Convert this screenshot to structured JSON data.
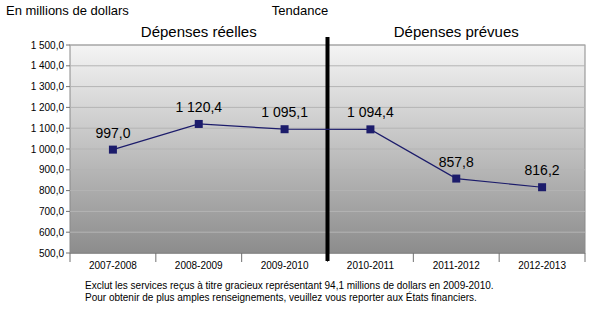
{
  "chart_data": {
    "type": "line",
    "title": "Tendance",
    "y_label": "En millions de dollars",
    "annotations": [
      "Dépenses réelles",
      "Dépenses prévues"
    ],
    "footnote": [
      "Exclut les services reçus à titre gracieux représentant 94,1 millions de dollars en 2009-2010.",
      "Pour obtenir de plus amples renseignements, veuillez vous reporter aux États financiers."
    ],
    "categories": [
      "2007-2008",
      "2008-2009",
      "2009-2010",
      "2010-2011",
      "2011-2012",
      "2012-2013"
    ],
    "values": [
      997.0,
      1120.4,
      1095.1,
      1094.4,
      857.8,
      816.2
    ],
    "value_labels": [
      "997,0",
      "1 120,4",
      "1 095,1",
      "1 094,4",
      "857,8",
      "816,2"
    ],
    "data_labels": true,
    "color": "#1c1c6b",
    "marker": "square",
    "line_style": "solid",
    "grid": true,
    "ylim": [
      500,
      1500
    ],
    "yticks": [
      {
        "value": 500,
        "label": "500,0"
      },
      {
        "value": 600,
        "label": "600,0"
      },
      {
        "value": 700,
        "label": "700,0"
      },
      {
        "value": 800,
        "label": "800,0"
      },
      {
        "value": 900,
        "label": "900,0"
      },
      {
        "value": 1000,
        "label": "1 000,0"
      },
      {
        "value": 1100,
        "label": "1 100,0"
      },
      {
        "value": 1200,
        "label": "1 200,0"
      },
      {
        "value": 1300,
        "label": "1 300,0"
      },
      {
        "value": 1400,
        "label": "1 400,0"
      },
      {
        "value": 1500,
        "label": "1 500,0"
      }
    ]
  }
}
